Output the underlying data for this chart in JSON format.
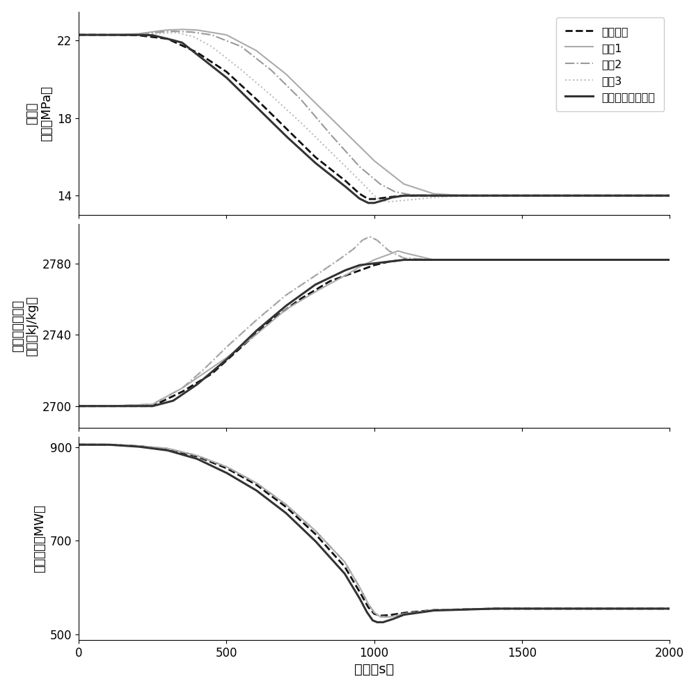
{
  "xlabel": "时间（s）",
  "ylabel1": "主蒓汽\n压力（MPa）",
  "ylabel2": "分离器中水蒓气\n焛値（kJ/kg）",
  "ylabel3": "输出功率（MW）",
  "xlim": [
    0,
    2000
  ],
  "ylim1": [
    13.0,
    23.5
  ],
  "ylim2": [
    2688,
    2802
  ],
  "ylim3": [
    488,
    922
  ],
  "yticks1": [
    14,
    18,
    22
  ],
  "yticks2": [
    2700,
    2740,
    2780
  ],
  "yticks3": [
    500,
    700,
    900
  ],
  "xticks": [
    0,
    500,
    1000,
    1500,
    2000
  ],
  "legend_labels": [
    "负荷指令",
    "对比1",
    "对比2",
    "对比3",
    "本发明提出的方案"
  ],
  "line_colors": [
    "#111111",
    "#aaaaaa",
    "#999999",
    "#bbbbbb",
    "#333333"
  ],
  "line_styles": [
    "--",
    "-",
    "-.",
    ":",
    "-"
  ],
  "line_widths": [
    2.0,
    1.5,
    1.5,
    1.5,
    2.2
  ],
  "bg_color": "#ffffff"
}
